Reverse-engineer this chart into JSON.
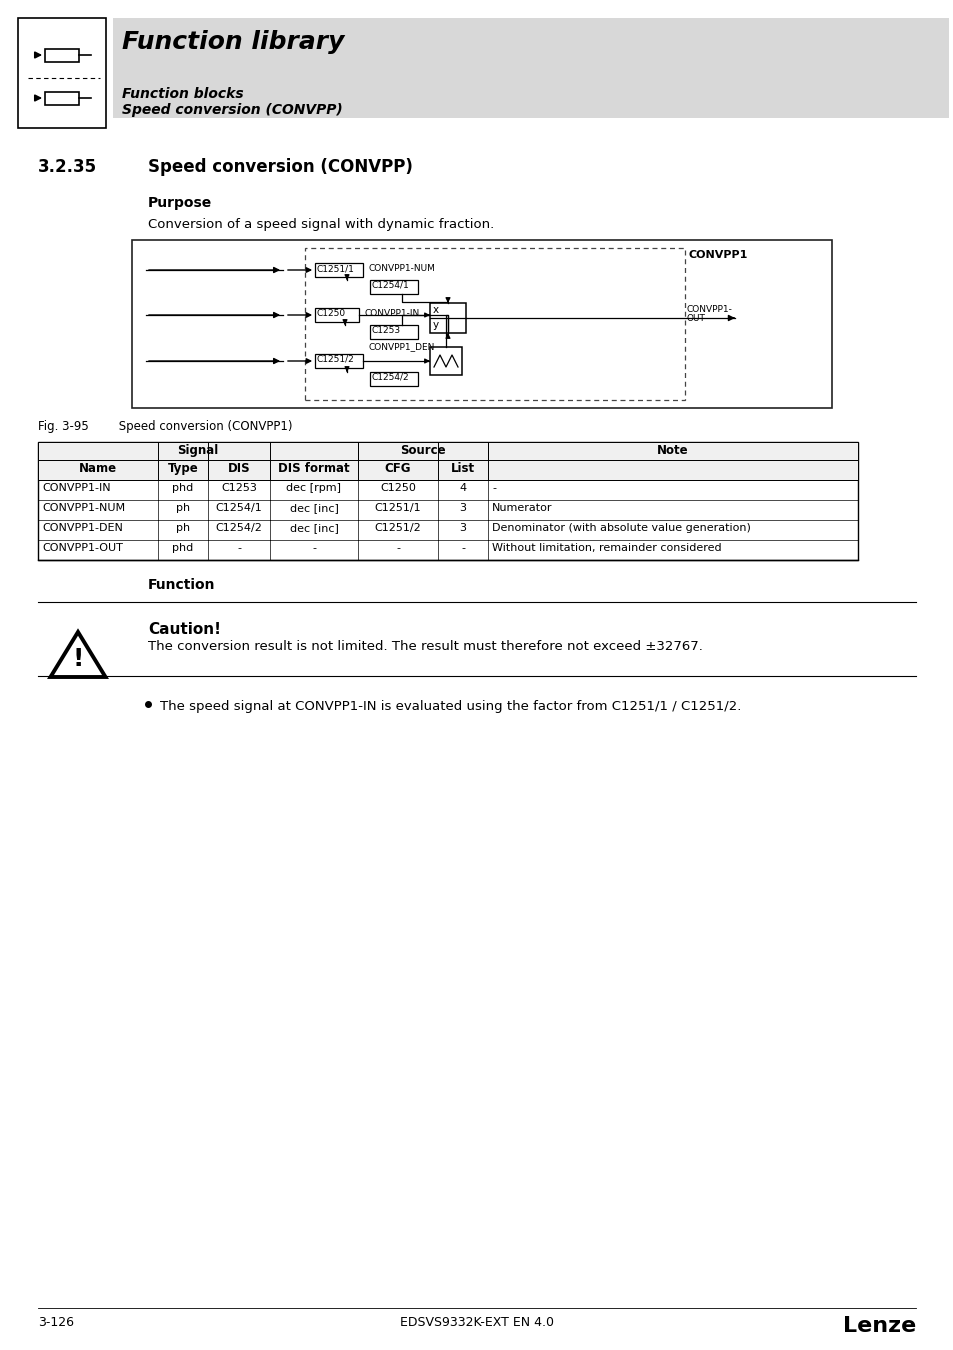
{
  "page_bg": "#ffffff",
  "header_bg": "#d8d8d8",
  "header_title": "Function library",
  "header_sub1": "Function blocks",
  "header_sub2": "Speed conversion (CONVPP)",
  "section_number": "3.2.35",
  "section_title": "Speed conversion (CONVPP)",
  "purpose_heading": "Purpose",
  "purpose_text": "Conversion of a speed signal with dynamic fraction.",
  "fig_caption": "Fig. 3-95        Speed conversion (CONVPP1)",
  "function_heading": "Function",
  "caution_heading": "Caution!",
  "caution_text": "The conversion result is not limited. The result must therefore not exceed ±32767.",
  "bullet_text": "The speed signal at CONVPP1-IN is evaluated using the factor from C1251/1 / C1251/2.",
  "table_data": [
    [
      "CONVPP1-IN",
      "phd",
      "C1253",
      "dec [rpm]",
      "C1250",
      "4",
      "-"
    ],
    [
      "CONVPP1-NUM",
      "ph",
      "C1254/1",
      "dec [inc]",
      "C1251/1",
      "3",
      "Numerator"
    ],
    [
      "CONVPP1-DEN",
      "ph",
      "C1254/2",
      "dec [inc]",
      "C1251/2",
      "3",
      "Denominator (with absolute value generation)"
    ],
    [
      "CONVPP1-OUT",
      "phd",
      "-",
      "-",
      "-",
      "-",
      "Without limitation, remainder considered"
    ]
  ],
  "footer_left": "3-126",
  "footer_center": "EDSVS9332K-EXT EN 4.0",
  "footer_right": "Lenze"
}
